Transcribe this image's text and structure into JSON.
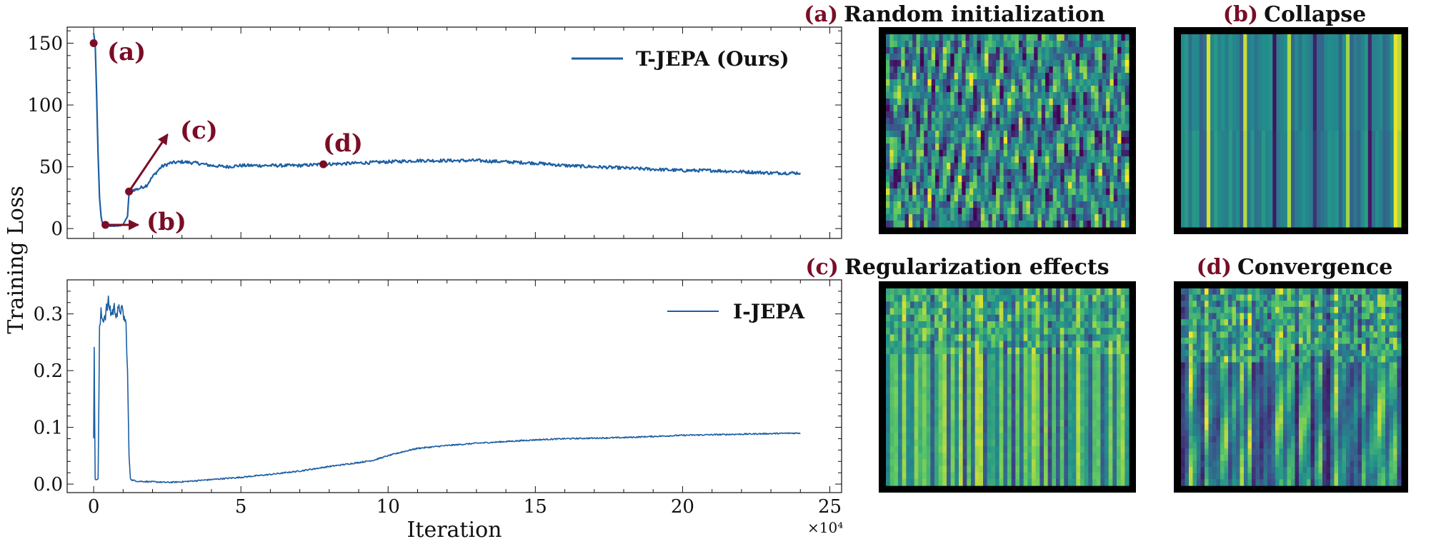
{
  "colors": {
    "line": "#1c5fa3",
    "annotation": "#7a0d26",
    "frame": "#000000",
    "viridis": [
      "#440154",
      "#3b528b",
      "#21918c",
      "#5ec962",
      "#fde725"
    ]
  },
  "chart_data": [
    {
      "type": "line",
      "title": "",
      "xlabel": "",
      "ylabel": "Training Loss",
      "xlim": [
        -0.9,
        25.4
      ],
      "ylim": [
        -8,
        163
      ],
      "yticks": [
        "0",
        "50",
        "100",
        "150"
      ],
      "grid": false,
      "legend_position": "top-right",
      "series": [
        {
          "name": "T-JEPA (Ours)",
          "x": [
            0.0,
            0.05,
            0.1,
            0.15,
            0.2,
            0.25,
            0.3,
            0.4,
            0.5,
            0.6,
            0.8,
            1.0,
            1.15,
            1.2,
            1.25,
            1.3,
            1.5,
            1.8,
            2.0,
            2.3,
            2.6,
            3.0,
            3.5,
            4.0,
            4.5,
            5.0,
            6.0,
            7.0,
            7.8,
            9.0,
            10.0,
            11.0,
            12.0,
            13.0,
            14.0,
            15.0,
            16.0,
            17.0,
            18.0,
            19.0,
            20.0,
            21.0,
            22.0,
            23.0,
            24.0
          ],
          "y": [
            158,
            150,
            110,
            60,
            25,
            10,
            4,
            2,
            2,
            2,
            2,
            3,
            10,
            28,
            30,
            31,
            32,
            35,
            42,
            50,
            53,
            54,
            53,
            51,
            50,
            51,
            51,
            51,
            52,
            53,
            54,
            55,
            55,
            55,
            54,
            53,
            51,
            50,
            49,
            48,
            47,
            47,
            46,
            45,
            45
          ]
        }
      ],
      "annotations": [
        {
          "label": "(a)",
          "x": 0.0,
          "y": 150
        },
        {
          "label": "(b)",
          "x": 0.4,
          "y": 3
        },
        {
          "label": "(c)",
          "x": 1.2,
          "y": 30
        },
        {
          "label": "(d)",
          "x": 7.8,
          "y": 52
        }
      ]
    },
    {
      "type": "line",
      "title": "",
      "xlabel": "Iteration",
      "ylabel": "",
      "xlim": [
        -0.9,
        25.4
      ],
      "ylim": [
        -0.015,
        0.36
      ],
      "xticks": [
        "0",
        "5",
        "10",
        "15",
        "20",
        "25"
      ],
      "yticks": [
        "0.0",
        "0.1",
        "0.2",
        "0.3"
      ],
      "x_multiplier": "×10⁴",
      "grid": false,
      "legend_position": "top-right",
      "series": [
        {
          "name": "I-JEPA",
          "x": [
            0.0,
            0.02,
            0.05,
            0.1,
            0.15,
            0.2,
            0.25,
            0.3,
            0.4,
            0.5,
            0.6,
            0.7,
            0.8,
            0.9,
            1.0,
            1.1,
            1.15,
            1.2,
            1.25,
            1.3,
            1.5,
            2.0,
            2.5,
            3.0,
            4.0,
            5.0,
            6.0,
            7.0,
            8.0,
            9.0,
            9.5,
            10.0,
            10.5,
            11.0,
            12.0,
            13.0,
            14.0,
            15.0,
            16.0,
            17.0,
            18.0,
            19.0,
            20.0,
            21.0,
            22.0,
            23.0,
            24.0
          ],
          "y": [
            0.08,
            0.24,
            0.01,
            0.007,
            0.01,
            0.27,
            0.3,
            0.29,
            0.3,
            0.32,
            0.3,
            0.31,
            0.3,
            0.31,
            0.3,
            0.28,
            0.2,
            0.05,
            0.01,
            0.007,
            0.005,
            0.004,
            0.003,
            0.004,
            0.008,
            0.012,
            0.017,
            0.023,
            0.031,
            0.038,
            0.042,
            0.05,
            0.057,
            0.063,
            0.068,
            0.072,
            0.075,
            0.078,
            0.08,
            0.081,
            0.082,
            0.084,
            0.086,
            0.087,
            0.088,
            0.089,
            0.09
          ]
        }
      ]
    },
    {
      "type": "heatmap",
      "label": "(a)",
      "title": "Random initialization",
      "pattern": "random"
    },
    {
      "type": "heatmap",
      "label": "(b)",
      "title": "Collapse",
      "pattern": "collapse"
    },
    {
      "type": "heatmap",
      "label": "(c)",
      "title": "Regularization effects",
      "pattern": "regularization"
    },
    {
      "type": "heatmap",
      "label": "(d)",
      "title": "Convergence",
      "pattern": "convergence"
    }
  ]
}
